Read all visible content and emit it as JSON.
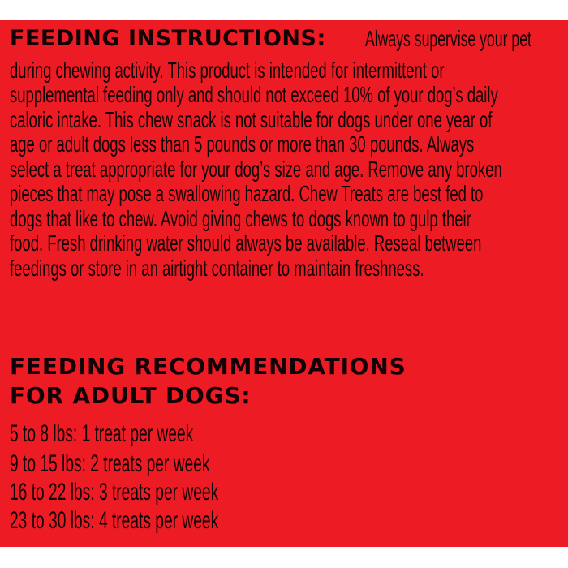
{
  "instructions": {
    "heading": "FEEDING INSTRUCTIONS:",
    "lines": [
      "Always supervise your pet",
      "during chewing activity. This product is intended for intermittent or",
      "supplemental feeding only and should not exceed 10% of your dog’s daily",
      "caloric intake. This chew snack is not suitable for dogs under one year of",
      "age or adult dogs less than 5 pounds or more than 30 pounds. Always",
      "select a treat appropriate for your dog’s size and age. Remove any broken",
      "pieces that may pose a swallowing hazard. Chew Treats are best fed to",
      "dogs that like to chew. Avoid giving chews to dogs known to gulp their",
      "food. Fresh drinking water should always be available. Reseal between",
      "feedings or store in an airtight container to maintain freshness."
    ]
  },
  "recommendations": {
    "heading_line1": "FEEDING RECOMMENDATIONS",
    "heading_line2": "FOR ADULT DOGS:",
    "items": [
      "5 to 8 lbs: 1 treat per week",
      "9 to 15 lbs: 2 treats per week",
      "16 to 22 lbs: 3 treats per week",
      "23 to 30 lbs: 4 treats per week"
    ]
  },
  "colors": {
    "background": "#ed1c24",
    "text": "#120406"
  }
}
